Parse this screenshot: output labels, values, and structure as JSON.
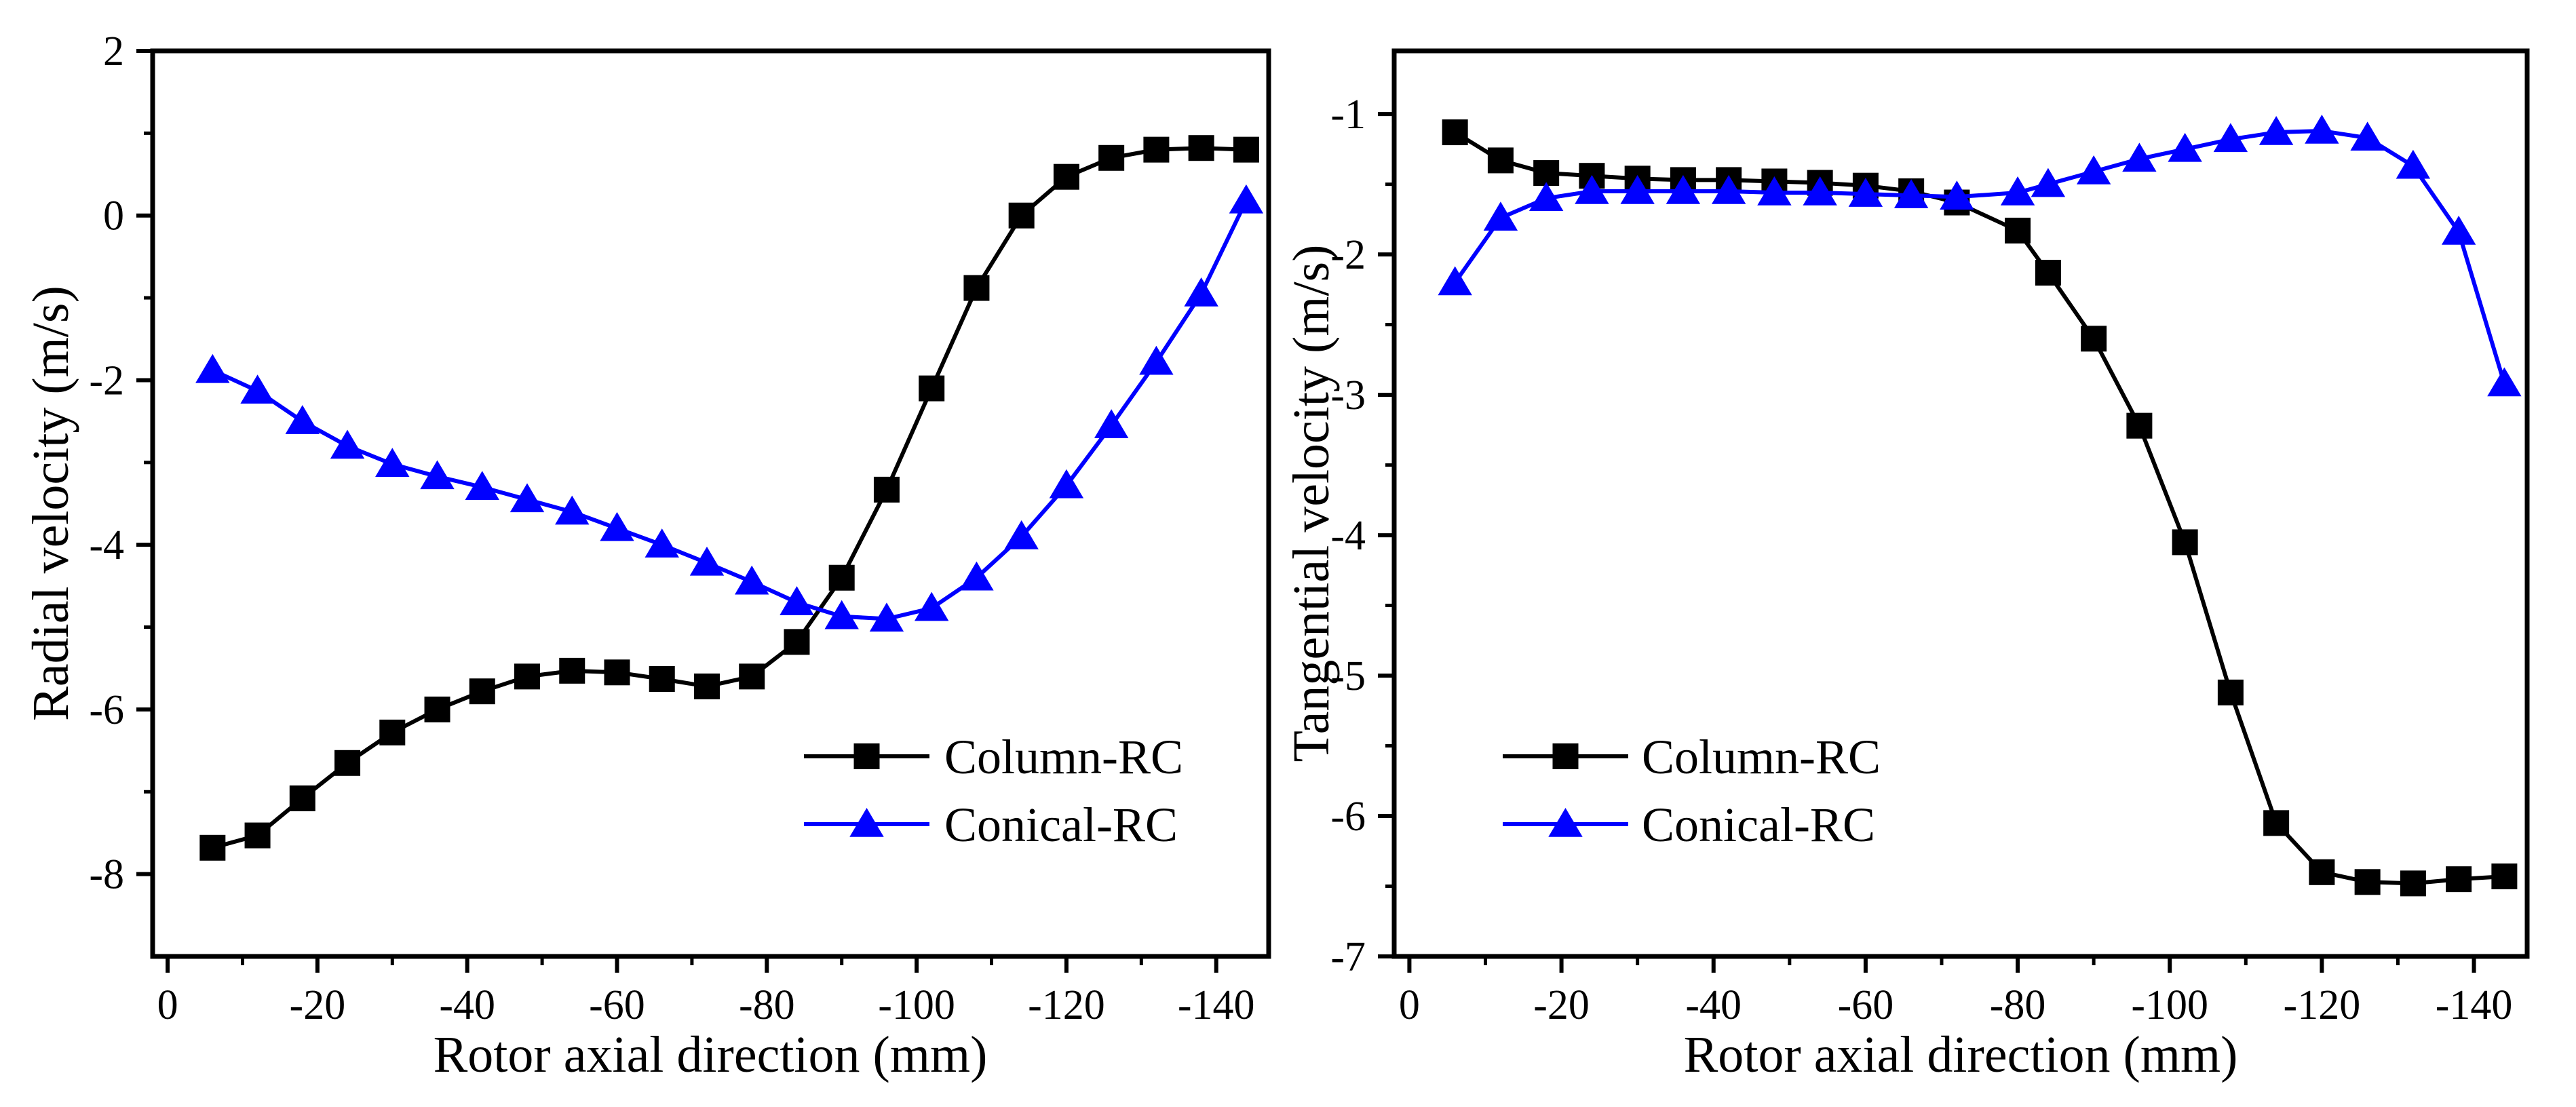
{
  "figure": {
    "description_free": true
  },
  "colors": {
    "column_series": "#000000",
    "conical_series": "#0000ff",
    "axis": "#000000",
    "background": "#ffffff"
  },
  "chart_data": [
    {
      "type": "line",
      "xlabel": "Rotor axial direction (mm)",
      "ylabel": "Radial velocity (m/s)",
      "xlim": [
        2,
        -147
      ],
      "ylim": [
        -9,
        2
      ],
      "x_ticks": [
        0,
        -20,
        -40,
        -60,
        -80,
        -100,
        -120,
        -140
      ],
      "x_tick_labels": [
        "0",
        "-20",
        "-40",
        "-60",
        "-80",
        "-100",
        "-120",
        "-140"
      ],
      "y_ticks": [
        -8,
        -6,
        -4,
        -2,
        0,
        2
      ],
      "y_tick_labels": [
        "-8",
        "-6",
        "-4",
        "-2",
        "0",
        "2"
      ],
      "legend_position": "bottom-right",
      "x": [
        -6,
        -12,
        -18,
        -24,
        -30,
        -36,
        -42,
        -48,
        -54,
        -60,
        -66,
        -72,
        -78,
        -84,
        -90,
        -96,
        -102,
        -108,
        -114,
        -120,
        -126,
        -132,
        -138,
        -144
      ],
      "series": [
        {
          "name": "Column-RC",
          "marker": "square",
          "color": "#000000",
          "values": [
            -7.68,
            -7.53,
            -7.08,
            -6.65,
            -6.28,
            -6.0,
            -5.78,
            -5.6,
            -5.53,
            -5.55,
            -5.63,
            -5.72,
            -5.6,
            -5.18,
            -4.4,
            -3.33,
            -2.1,
            -0.88,
            0.0,
            0.47,
            0.7,
            0.8,
            0.82,
            0.8
          ]
        },
        {
          "name": "Conical-RC",
          "marker": "triangle",
          "color": "#0000ff",
          "values": [
            -1.88,
            -2.13,
            -2.5,
            -2.8,
            -3.02,
            -3.17,
            -3.3,
            -3.45,
            -3.6,
            -3.8,
            -4.0,
            -4.22,
            -4.45,
            -4.7,
            -4.87,
            -4.9,
            -4.77,
            -4.4,
            -3.9,
            -3.28,
            -2.55,
            -1.78,
            -0.95,
            0.18
          ]
        }
      ]
    },
    {
      "type": "line",
      "xlabel": "Rotor axial direction (mm)",
      "ylabel": "Tangential velocity (m/s)",
      "xlim": [
        2,
        -147
      ],
      "ylim": [
        -7,
        -0.55
      ],
      "x_ticks": [
        0,
        -20,
        -40,
        -60,
        -80,
        -100,
        -120,
        -140
      ],
      "x_tick_labels": [
        "0",
        "-20",
        "-40",
        "-60",
        "-80",
        "-100",
        "-120",
        "-140"
      ],
      "y_ticks": [
        -7,
        -6,
        -5,
        -4,
        -3,
        -2,
        -1
      ],
      "y_tick_labels": [
        "-7",
        "-6",
        "-5",
        "-4",
        "-3",
        "-2",
        "-1"
      ],
      "legend_position": "bottom-left",
      "x": [
        -6,
        -12,
        -18,
        -24,
        -30,
        -36,
        -42,
        -48,
        -54,
        -60,
        -66,
        -72,
        -80,
        -84,
        -90,
        -96,
        -102,
        -108,
        -114,
        -120,
        -126,
        -132,
        -138,
        -144
      ],
      "series": [
        {
          "name": "Column-RC",
          "marker": "square",
          "color": "#000000",
          "values": [
            -1.13,
            -1.33,
            -1.42,
            -1.44,
            -1.46,
            -1.47,
            -1.47,
            -1.48,
            -1.49,
            -1.51,
            -1.55,
            -1.63,
            -1.83,
            -2.13,
            -2.6,
            -3.22,
            -4.05,
            -5.12,
            -6.05,
            -6.4,
            -6.47,
            -6.48,
            -6.45,
            -6.43
          ]
        },
        {
          "name": "Conical-RC",
          "marker": "triangle",
          "color": "#0000ff",
          "values": [
            -2.2,
            -1.74,
            -1.6,
            -1.55,
            -1.55,
            -1.55,
            -1.55,
            -1.56,
            -1.56,
            -1.57,
            -1.58,
            -1.59,
            -1.56,
            -1.5,
            -1.41,
            -1.32,
            -1.25,
            -1.18,
            -1.13,
            -1.12,
            -1.17,
            -1.37,
            -1.84,
            -2.92
          ]
        }
      ]
    }
  ]
}
